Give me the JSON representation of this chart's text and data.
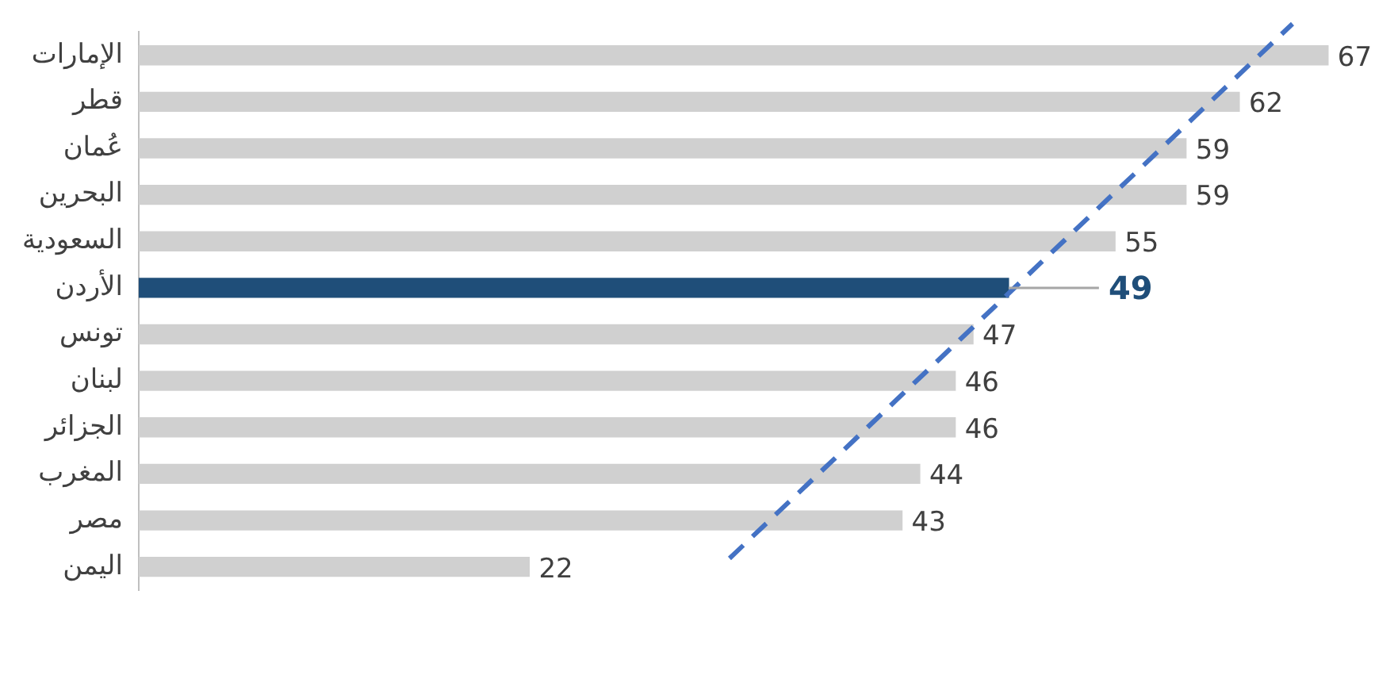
{
  "chart_data": {
    "type": "bar",
    "orientation": "horizontal",
    "categories": [
      "الإمارات",
      "قطر",
      "عُمان",
      "البحرين",
      "السعودية",
      "الأردن",
      "تونس",
      "لبنان",
      "الجزائر",
      "المغرب",
      "مصر",
      "اليمن"
    ],
    "values": [
      67,
      62,
      59,
      59,
      55,
      49,
      47,
      46,
      46,
      44,
      43,
      22
    ],
    "colors": [
      "#d0d0d0",
      "#d0d0d0",
      "#d0d0d0",
      "#d0d0d0",
      "#d0d0d0",
      "#1f4e79",
      "#d0d0d0",
      "#d0d0d0",
      "#d0d0d0",
      "#d0d0d0",
      "#d0d0d0",
      "#d0d0d0"
    ],
    "data_labels": true,
    "grid": false,
    "legend": false
  }
}
